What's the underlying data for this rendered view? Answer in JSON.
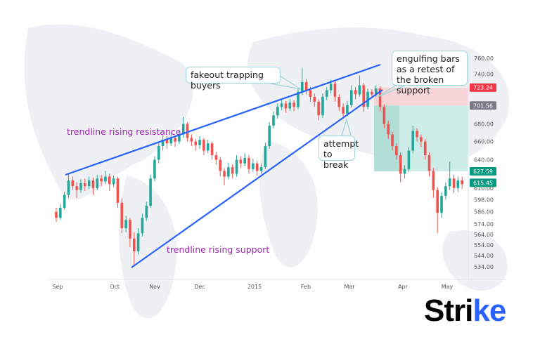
{
  "chart_data": {
    "type": "candlestick",
    "title": "",
    "colors": {
      "up": "#26a69a",
      "down": "#ef5350",
      "trendline": "#2962ff",
      "annotation_text": "#9c27b0",
      "stop_zone": "#f7d4d8",
      "target_zone": "#cdebe7"
    },
    "x_ticks": [
      "Sep",
      "Oct",
      "Nov",
      "Dec",
      "2015",
      "Feb",
      "Mar",
      "Apr",
      "May"
    ],
    "y_ticks": [
      760,
      740,
      680,
      660,
      640,
      610,
      598,
      586,
      574,
      564,
      554,
      544,
      534
    ],
    "y_scale": "log",
    "ylim": [
      534,
      765
    ],
    "grid": false,
    "price_labels": [
      {
        "value": "723.24",
        "color": "#f23645"
      },
      {
        "value": "701.56",
        "color": "#787b86"
      },
      {
        "value": "627.59",
        "color": "#089981"
      },
      {
        "value": "615.45",
        "color": "#089981"
      }
    ],
    "ohlc": [
      [
        586,
        590,
        576,
        580
      ],
      [
        580,
        594,
        578,
        590
      ],
      [
        590,
        606,
        588,
        603
      ],
      [
        603,
        625,
        600,
        618
      ],
      [
        618,
        622,
        608,
        612
      ],
      [
        612,
        616,
        600,
        608
      ],
      [
        608,
        619,
        605,
        615
      ],
      [
        615,
        620,
        607,
        612
      ],
      [
        612,
        622,
        609,
        618
      ],
      [
        618,
        621,
        603,
        610
      ],
      [
        610,
        624,
        608,
        620
      ],
      [
        620,
        624,
        612,
        617
      ],
      [
        617,
        628,
        614,
        622
      ],
      [
        622,
        625,
        607,
        614
      ],
      [
        614,
        623,
        611,
        620
      ],
      [
        620,
        622,
        590,
        595
      ],
      [
        595,
        600,
        565,
        570
      ],
      [
        570,
        582,
        566,
        578
      ],
      [
        578,
        580,
        552,
        560
      ],
      [
        560,
        566,
        536,
        548
      ],
      [
        548,
        570,
        545,
        565
      ],
      [
        565,
        584,
        562,
        580
      ],
      [
        580,
        596,
        577,
        592
      ],
      [
        592,
        624,
        590,
        620
      ],
      [
        620,
        644,
        617,
        640
      ],
      [
        640,
        659,
        636,
        655
      ],
      [
        655,
        667,
        650,
        662
      ],
      [
        662,
        666,
        652,
        658
      ],
      [
        658,
        669,
        655,
        664
      ],
      [
        664,
        667,
        654,
        660
      ],
      [
        660,
        672,
        657,
        668
      ],
      [
        668,
        688,
        664,
        680
      ],
      [
        680,
        682,
        660,
        664
      ],
      [
        664,
        668,
        655,
        660
      ],
      [
        660,
        663,
        650,
        656
      ],
      [
        656,
        666,
        652,
        662
      ],
      [
        662,
        664,
        645,
        650
      ],
      [
        650,
        662,
        647,
        658
      ],
      [
        658,
        660,
        640,
        645
      ],
      [
        645,
        649,
        635,
        640
      ],
      [
        640,
        643,
        622,
        628
      ],
      [
        628,
        631,
        613,
        622
      ],
      [
        622,
        637,
        619,
        632
      ],
      [
        632,
        635,
        620,
        625
      ],
      [
        625,
        645,
        622,
        640
      ],
      [
        640,
        644,
        631,
        636
      ],
      [
        636,
        647,
        633,
        642
      ],
      [
        642,
        645,
        625,
        630
      ],
      [
        630,
        641,
        627,
        636
      ],
      [
        636,
        639,
        623,
        628
      ],
      [
        628,
        636,
        625,
        632
      ],
      [
        632,
        659,
        630,
        655
      ],
      [
        655,
        682,
        652,
        678
      ],
      [
        678,
        694,
        675,
        690
      ],
      [
        690,
        704,
        686,
        700
      ],
      [
        700,
        708,
        696,
        704
      ],
      [
        704,
        707,
        693,
        698
      ],
      [
        698,
        709,
        695,
        705
      ],
      [
        705,
        708,
        695,
        700
      ],
      [
        700,
        722,
        697,
        718
      ],
      [
        718,
        748,
        714,
        730
      ],
      [
        730,
        734,
        715,
        720
      ],
      [
        720,
        724,
        706,
        712
      ],
      [
        712,
        716,
        700,
        706
      ],
      [
        706,
        709,
        684,
        690
      ],
      [
        690,
        716,
        687,
        712
      ],
      [
        712,
        724,
        708,
        720
      ],
      [
        720,
        733,
        716,
        728
      ],
      [
        728,
        731,
        706,
        712
      ],
      [
        712,
        715,
        695,
        700
      ],
      [
        700,
        704,
        686,
        692
      ],
      [
        692,
        707,
        689,
        702
      ],
      [
        702,
        726,
        699,
        720
      ],
      [
        720,
        724,
        709,
        715
      ],
      [
        715,
        738,
        712,
        726
      ],
      [
        726,
        729,
        694,
        700
      ],
      [
        700,
        722,
        697,
        718
      ],
      [
        718,
        721,
        710,
        715
      ],
      [
        715,
        726,
        712,
        722
      ],
      [
        722,
        725,
        695,
        700
      ],
      [
        700,
        703,
        675,
        680
      ],
      [
        680,
        684,
        663,
        668
      ],
      [
        668,
        671,
        650,
        655
      ],
      [
        655,
        658,
        640,
        645
      ],
      [
        645,
        648,
        616,
        625
      ],
      [
        625,
        634,
        620,
        630
      ],
      [
        630,
        654,
        627,
        650
      ],
      [
        650,
        678,
        647,
        672
      ],
      [
        672,
        675,
        660,
        665
      ],
      [
        665,
        668,
        654,
        660
      ],
      [
        660,
        663,
        640,
        645
      ],
      [
        645,
        648,
        622,
        628
      ],
      [
        628,
        631,
        600,
        608
      ],
      [
        608,
        611,
        565,
        585
      ],
      [
        585,
        606,
        580,
        602
      ],
      [
        602,
        616,
        598,
        612
      ],
      [
        612,
        638,
        608,
        620
      ],
      [
        620,
        624,
        605,
        610
      ],
      [
        610,
        622,
        606,
        618
      ],
      [
        618,
        622,
        609,
        614
      ]
    ],
    "short_position": {
      "stop": 723.24,
      "entry": 701.56,
      "target": 627.59
    },
    "annotations": {
      "resistance": "trendline rising resistance",
      "support": "trendline rising support",
      "fakeout": "fakeout trapping buyers",
      "attempt": "attempt to break",
      "engulfing": "engulfing bars as a retest of the broken support"
    }
  },
  "logo": {
    "text_main": "Stri",
    "text_accent": "ke"
  }
}
